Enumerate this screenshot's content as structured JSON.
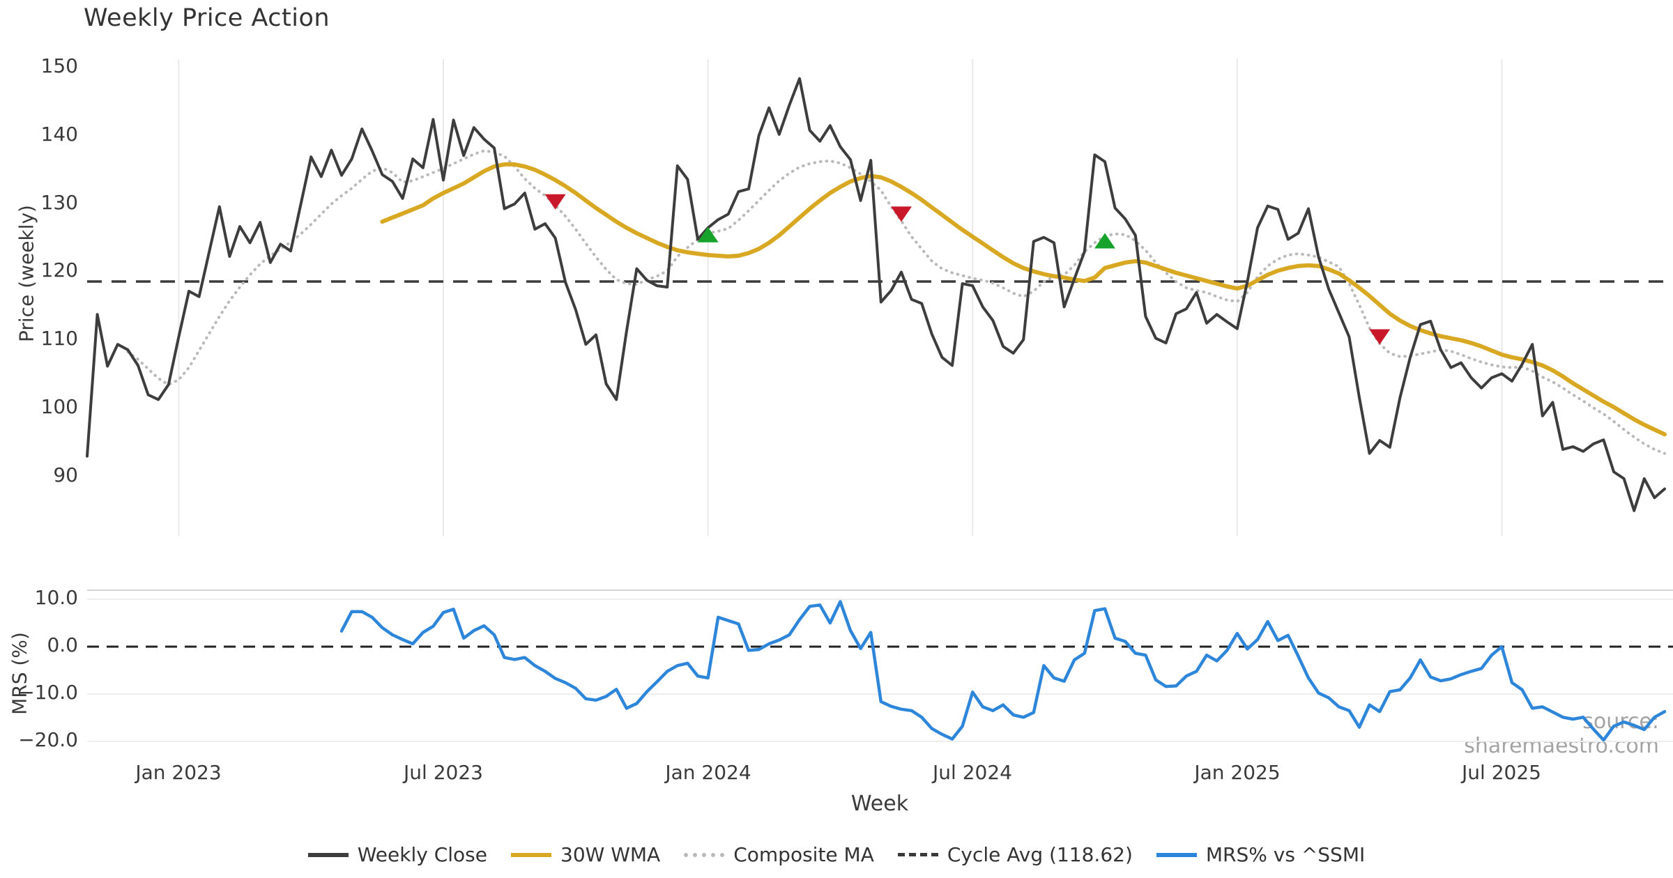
{
  "title": "Weekly Price Action",
  "xlabel": "Week",
  "source": "source: sharemaestro.com",
  "price_panel": {
    "ylabel": "Price (weekly)"
  },
  "mrs_panel": {
    "ylabel": "MRS (%)"
  },
  "legend": [
    {
      "label": "Weekly Close",
      "swatch": "solid",
      "color": "#3d3d3d"
    },
    {
      "label": "30W WMA",
      "swatch": "solid",
      "color": "#d9a823"
    },
    {
      "label": "Composite MA",
      "swatch": "dotted",
      "color": "#b9b9b9"
    },
    {
      "label": "Cycle Avg (118.62)",
      "swatch": "dashed",
      "color": "#3a3a3a"
    },
    {
      "label": "MRS% vs ^SSMI",
      "swatch": "solid",
      "color": "#2d86d9"
    }
  ],
  "chart_data": {
    "type": "line",
    "title": "Weekly Price Action",
    "x_unit": "week_index_from_2022-11",
    "x_ticks": [
      {
        "label": "Jan 2023",
        "week": 9
      },
      {
        "label": "Jul 2023",
        "week": 35
      },
      {
        "label": "Jan 2024",
        "week": 61
      },
      {
        "label": "Jul 2024",
        "week": 87
      },
      {
        "label": "Jan 2025",
        "week": 113
      },
      {
        "label": "Jul 2025",
        "week": 139
      }
    ],
    "price": {
      "ylim": [
        84,
        153
      ],
      "yticks": [
        150,
        140,
        130,
        120,
        110,
        100,
        90
      ],
      "cycle_avg": 118.62,
      "grid": "vertical-only",
      "series": [
        {
          "name": "Weekly Close",
          "color": "#3d3d3d",
          "style": "solid",
          "width": 4,
          "start_week": 0,
          "values": [
            93,
            113.8,
            106.2,
            109.4,
            108.6,
            106.3,
            102,
            101.3,
            103.5,
            110.5,
            117.2,
            116.4,
            123,
            129.6,
            122.3,
            126.7,
            124.3,
            127.3,
            121.4,
            124.1,
            123.1,
            130,
            136.9,
            134,
            137.9,
            134.2,
            136.6,
            141,
            137.8,
            134.3,
            133.3,
            130.8,
            136.6,
            135.3,
            142.4,
            133.5,
            142.3,
            137.1,
            141.2,
            139.5,
            138.2,
            129.3,
            130,
            131.6,
            126.3,
            127.1,
            125,
            118.5,
            114.5,
            109.4,
            110.8,
            103.6,
            101.3,
            111.3,
            120.5,
            118.8,
            118,
            117.8,
            135.6,
            133.6,
            124.8,
            126.5,
            127.7,
            128.5,
            131.8,
            132.2,
            140,
            144.1,
            140.2,
            144.5,
            148.4,
            140.8,
            139.2,
            141.5,
            138.4,
            136.5,
            130.5,
            136.4,
            115.6,
            117.3,
            120,
            116,
            115.4,
            110.9,
            107.5,
            106.3,
            118.3,
            118,
            114.9,
            112.9,
            109.1,
            108.1,
            110.1,
            124.5,
            125.1,
            124.3,
            114.9,
            119,
            123,
            137.2,
            136.2,
            129.4,
            127.8,
            125.4,
            113.5,
            110.3,
            109.6,
            113.9,
            114.6,
            117,
            112.5,
            113.8,
            112.7,
            111.7,
            118.6,
            126.5,
            129.7,
            129.2,
            124.8,
            125.7,
            129.3,
            122.2,
            117.5,
            114,
            110.5,
            101.6,
            93.4,
            95.3,
            94.3,
            101.6,
            107.5,
            112.3,
            112.8,
            108.6,
            106,
            106.7,
            104.5,
            103,
            104.5,
            105.1,
            104,
            106.5,
            109.4,
            98.9,
            100.9,
            94,
            94.4,
            93.7,
            94.8,
            95.4,
            90.7,
            89.7,
            85,
            89.7,
            86.9,
            88.2
          ]
        },
        {
          "name": "30W WMA",
          "color": "#d9a823",
          "style": "solid",
          "width": 6,
          "start_week": 29,
          "values": [
            127.4,
            128,
            128.6,
            129.2,
            129.8,
            130.8,
            131.6,
            132.3,
            133,
            133.9,
            134.8,
            135.5,
            135.8,
            135.8,
            135.5,
            135,
            134.3,
            133.5,
            132.6,
            131.6,
            130.5,
            129.4,
            128.4,
            127.4,
            126.5,
            125.7,
            125,
            124.3,
            123.7,
            123.2,
            122.9,
            122.7,
            122.5,
            122.4,
            122.3,
            122.4,
            122.8,
            123.4,
            124.3,
            125.4,
            126.7,
            128,
            129.3,
            130.5,
            131.6,
            132.5,
            133.3,
            133.8,
            134.1,
            133.9,
            133.3,
            132.5,
            131.6,
            130.6,
            129.5,
            128.4,
            127.3,
            126.2,
            125.2,
            124.2,
            123.2,
            122.2,
            121.3,
            120.6,
            120.1,
            119.7,
            119.4,
            119.2,
            118.9,
            118.7,
            119.2,
            120.6,
            121,
            121.4,
            121.6,
            121.4,
            120.9,
            120.4,
            119.9,
            119.5,
            119.1,
            118.7,
            118.3,
            117.9,
            117.6,
            118,
            118.8,
            119.6,
            120.2,
            120.6,
            120.9,
            121,
            120.9,
            120.4,
            119.8,
            118.8,
            117.7,
            116.5,
            115.2,
            113.9,
            112.9,
            112.1,
            111.5,
            111,
            110.6,
            110.3,
            110,
            109.6,
            109.1,
            108.5,
            107.9,
            107.5,
            107.2,
            106.8,
            106.3,
            105.6,
            104.7,
            103.7,
            102.8,
            101.9,
            101,
            100.2,
            99.3,
            98.4,
            97.6,
            96.9,
            96.2
          ]
        },
        {
          "name": "Composite MA",
          "color": "#b9b9b9",
          "style": "dotted",
          "width": 4,
          "start_week": 4,
          "values": [
            108.3,
            107.2,
            105.8,
            104.4,
            103.5,
            104.2,
            106,
            108.5,
            111,
            113.5,
            115.8,
            117.8,
            119.6,
            121.2,
            122.4,
            123.4,
            124.4,
            125.6,
            127,
            128.5,
            130,
            131.2,
            132.3,
            133.6,
            134.8,
            135.3,
            134.6,
            133.2,
            133.4,
            134,
            134.6,
            135.2,
            135.9,
            136.6,
            137.3,
            137.8,
            137.6,
            137,
            135.5,
            133.7,
            132.3,
            131.2,
            129.8,
            128.2,
            126.3,
            124.2,
            122.2,
            120.4,
            118.9,
            118.3,
            118.2,
            118.9,
            119.4,
            120.2,
            122.3,
            123.6,
            124.8,
            125.7,
            126,
            126.4,
            127.6,
            129,
            130.5,
            132,
            133.4,
            134.5,
            135.4,
            135.9,
            136.2,
            136.3,
            136,
            135.3,
            134.4,
            133.3,
            132,
            129.6,
            127.5,
            125.2,
            123.4,
            121.6,
            120.5,
            119.9,
            119.5,
            119.1,
            118.8,
            118.4,
            117.7,
            116.9,
            116.4,
            117.2,
            118.6,
            119.3,
            119.6,
            121,
            123,
            124.3,
            125.3,
            125.6,
            125.5,
            124.6,
            123.2,
            121.4,
            119.9,
            118.6,
            117.7,
            117.3,
            117,
            116.4,
            115.9,
            115.7,
            117,
            119.3,
            120.9,
            121.9,
            122.5,
            122.7,
            122.5,
            122.2,
            121.5,
            120.8,
            118.3,
            115.2,
            111.8,
            109.5,
            108.1,
            107.6,
            107.7,
            108,
            108.3,
            108.6,
            108.4,
            107.9,
            107.3,
            106.8,
            106.4,
            106.1,
            106,
            106.1,
            105.5,
            104.6,
            103.9,
            103,
            102,
            101.1,
            100.1,
            99.2,
            98.1,
            96.9,
            95.8,
            94.8,
            94,
            93.4
          ]
        }
      ],
      "markers": {
        "sell_color": "#c91829",
        "buy_color": "#16a22b",
        "sell": [
          {
            "week": 46,
            "price": 130.3
          },
          {
            "week": 80,
            "price": 128.5
          },
          {
            "week": 127,
            "price": 110.5
          }
        ],
        "buy": [
          {
            "week": 61,
            "price": 125.5
          },
          {
            "week": 100,
            "price": 124.6
          }
        ]
      }
    },
    "mrs": {
      "ylim": [
        -22,
        12
      ],
      "yticks": [
        10,
        0,
        -10,
        -20
      ],
      "ytick_labels": [
        "10.0",
        "0.0",
        "−10.0",
        "−20.0"
      ],
      "zero_line": 0,
      "series": {
        "name": "MRS% vs ^SSMI",
        "color": "#2d86d9",
        "width": 4.5,
        "start_week": 25,
        "values": [
          3.3,
          7.4,
          7.4,
          6.2,
          4,
          2.5,
          1.5,
          0.6,
          3,
          4.3,
          7.2,
          7.9,
          1.8,
          3.4,
          4.4,
          2.5,
          -2.3,
          -2.7,
          -2.3,
          -4,
          -5.2,
          -6.7,
          -7.6,
          -8.8,
          -11,
          -11.3,
          -10.5,
          -9,
          -13,
          -12,
          -9.5,
          -7.4,
          -5.2,
          -4,
          -3.5,
          -6.2,
          -6.6,
          6.2,
          5.5,
          4.8,
          -0.8,
          -0.6,
          0.6,
          1.4,
          2.5,
          5.7,
          8.5,
          8.8,
          5,
          9.5,
          3.4,
          -0.4,
          3,
          -11.6,
          -12.6,
          -13.2,
          -13.5,
          -14.9,
          -17.3,
          -18.5,
          -19.5,
          -16.8,
          -9.6,
          -12.7,
          -13.5,
          -12.3,
          -14.4,
          -14.9,
          -13.9,
          -4,
          -6.6,
          -7.3,
          -2.8,
          -1.4,
          7.6,
          8,
          1.8,
          1.1,
          -1.4,
          -1.8,
          -7,
          -8.4,
          -8.3,
          -6.2,
          -5.2,
          -1.8,
          -3,
          -0.8,
          2.8,
          -0.5,
          1.5,
          5.3,
          1.3,
          2.4,
          -2,
          -6.6,
          -9.8,
          -10.8,
          -12.7,
          -13.5,
          -17,
          -12.3,
          -13.7,
          -9.5,
          -9.1,
          -6.6,
          -2.8,
          -6.4,
          -7.2,
          -6.8,
          -5.9,
          -5.2,
          -4.6,
          -1.8,
          0,
          -7.6,
          -9.1,
          -13,
          -12.7,
          -13.8,
          -14.9,
          -15.3,
          -14.9,
          -17.4,
          -19.7,
          -16.8,
          -15.9,
          -16.6,
          -17.5,
          -14.9,
          -13.7
        ]
      }
    }
  }
}
